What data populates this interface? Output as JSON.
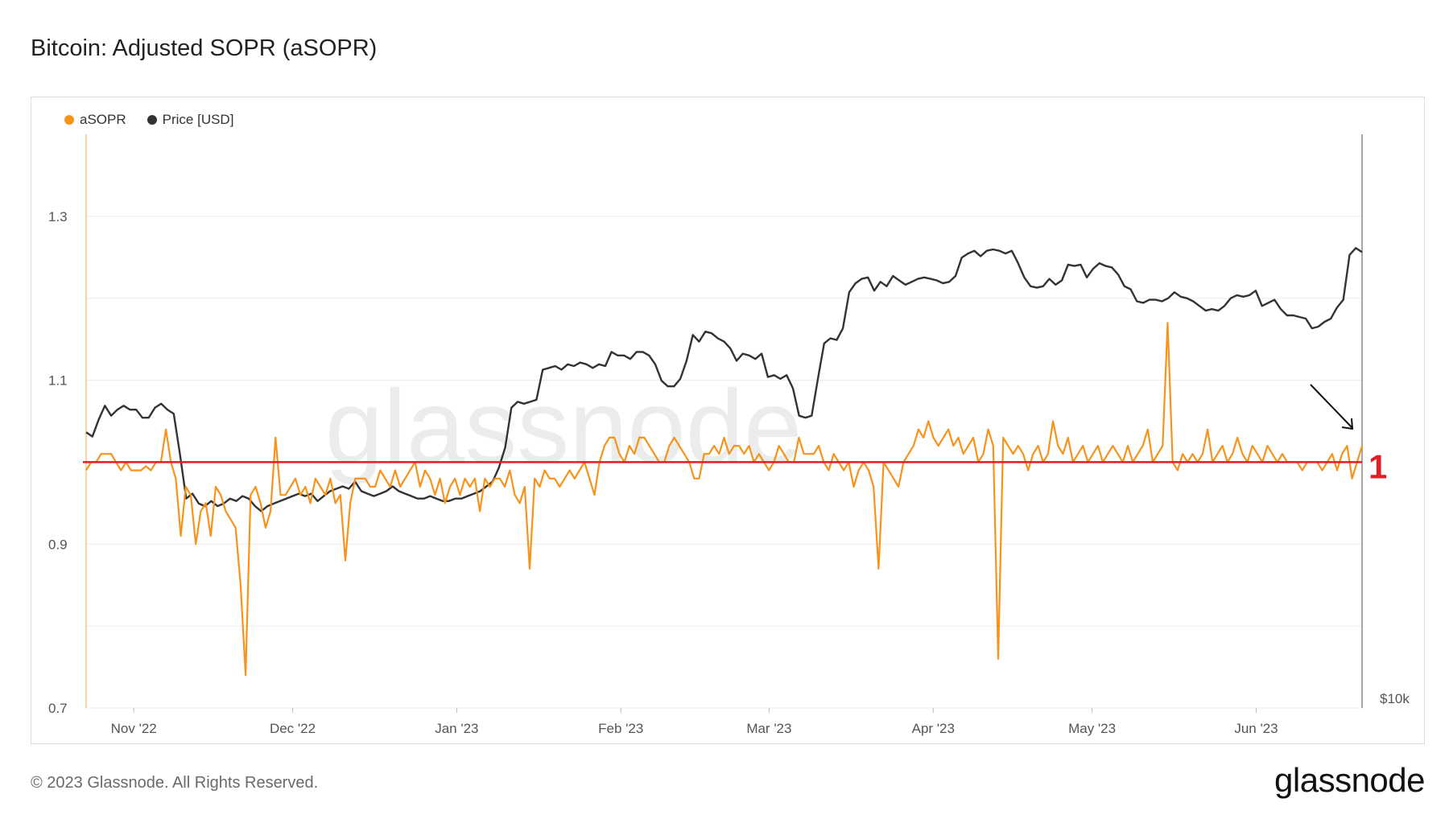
{
  "title": "Bitcoin: Adjusted SOPR (aSOPR)",
  "legend": [
    {
      "name": "aSOPR",
      "color": "#f7931a"
    },
    {
      "name": "Price [USD]",
      "color": "#333333"
    }
  ],
  "watermark": "glassnode",
  "footer": "© 2023 Glassnode. All Rights Reserved.",
  "brand": "glassnode",
  "annotation": {
    "label": "1",
    "color": "#e11d2a",
    "arrow": "down-right"
  },
  "chart_data": {
    "type": "line",
    "title": "Bitcoin: Adjusted SOPR (aSOPR)",
    "x_start": "2022-10-23",
    "x_end": "2023-06-21",
    "x_ticks": [
      "Nov '22",
      "Dec '22",
      "Jan '23",
      "Feb '23",
      "Mar '23",
      "Apr '23",
      "May '23",
      "Jun '23"
    ],
    "y_left": {
      "ticks": [
        "0.7",
        "0.9",
        "1.1",
        "1.3"
      ],
      "range": [
        0.7,
        1.4
      ],
      "grid": true
    },
    "y_right": {
      "ticks": [
        "$10k"
      ],
      "scale": "log"
    },
    "reference_line": {
      "value": 1,
      "label": "1",
      "color": "#e11d2a"
    },
    "series": [
      {
        "name": "aSOPR",
        "color": "#f7931a",
        "axis": "left",
        "values": [
          0.99,
          1.0,
          1.0,
          1.01,
          1.01,
          1.01,
          1.0,
          0.99,
          1.0,
          0.99,
          0.99,
          0.99,
          0.995,
          0.99,
          1.0,
          1.0,
          1.04,
          1.0,
          0.98,
          0.91,
          0.97,
          0.96,
          0.9,
          0.94,
          0.95,
          0.91,
          0.97,
          0.96,
          0.94,
          0.93,
          0.92,
          0.85,
          0.74,
          0.96,
          0.97,
          0.95,
          0.92,
          0.94,
          1.03,
          0.96,
          0.96,
          0.97,
          0.98,
          0.96,
          0.97,
          0.95,
          0.98,
          0.97,
          0.96,
          0.98,
          0.95,
          0.96,
          0.88,
          0.95,
          0.98,
          0.98,
          0.98,
          0.97,
          0.97,
          0.99,
          0.98,
          0.97,
          0.99,
          0.97,
          0.98,
          0.99,
          1.0,
          0.97,
          0.99,
          0.98,
          0.96,
          0.98,
          0.95,
          0.97,
          0.98,
          0.96,
          0.98,
          0.97,
          0.98,
          0.94,
          0.98,
          0.97,
          0.98,
          0.98,
          0.97,
          0.99,
          0.96,
          0.95,
          0.97,
          0.87,
          0.98,
          0.97,
          0.99,
          0.98,
          0.98,
          0.97,
          0.98,
          0.99,
          0.98,
          0.99,
          1.0,
          0.98,
          0.96,
          1.0,
          1.02,
          1.03,
          1.03,
          1.01,
          1.0,
          1.02,
          1.01,
          1.03,
          1.03,
          1.02,
          1.01,
          1.0,
          1.0,
          1.02,
          1.03,
          1.02,
          1.01,
          1.0,
          0.98,
          0.98,
          1.01,
          1.01,
          1.02,
          1.01,
          1.03,
          1.01,
          1.02,
          1.02,
          1.01,
          1.02,
          1.0,
          1.01,
          1.0,
          0.99,
          1.0,
          1.02,
          1.01,
          1.0,
          1.0,
          1.03,
          1.01,
          1.01,
          1.01,
          1.02,
          1.0,
          0.99,
          1.01,
          1.0,
          0.99,
          1.0,
          0.97,
          0.99,
          1.0,
          0.99,
          0.97,
          0.87,
          1.0,
          0.99,
          0.98,
          0.97,
          1.0,
          1.01,
          1.02,
          1.04,
          1.03,
          1.05,
          1.03,
          1.02,
          1.03,
          1.04,
          1.02,
          1.03,
          1.01,
          1.02,
          1.03,
          1.0,
          1.01,
          1.04,
          1.02,
          0.76,
          1.03,
          1.02,
          1.01,
          1.02,
          1.01,
          0.99,
          1.01,
          1.02,
          1.0,
          1.01,
          1.05,
          1.02,
          1.01,
          1.03,
          1.0,
          1.01,
          1.02,
          1.0,
          1.01,
          1.02,
          1.0,
          1.01,
          1.02,
          1.01,
          1.0,
          1.02,
          1.0,
          1.01,
          1.02,
          1.04,
          1.0,
          1.01,
          1.02,
          1.17,
          1.0,
          0.99,
          1.01,
          1.0,
          1.01,
          1.0,
          1.01,
          1.04,
          1.0,
          1.01,
          1.02,
          1.0,
          1.01,
          1.03,
          1.01,
          1.0,
          1.02,
          1.01,
          1.0,
          1.02,
          1.01,
          1.0,
          1.01,
          1.0,
          1.0,
          1.0,
          0.99,
          1.0,
          1.0,
          1.0,
          0.99,
          1.0,
          1.01,
          0.99,
          1.01,
          1.02,
          0.98,
          1.0,
          1.02
        ],
        "values_note_removed": true
      },
      {
        "name": "Price [USD]",
        "color": "#333333",
        "axis": "right",
        "values": [
          19500,
          19300,
          20100,
          20800,
          20300,
          20600,
          20800,
          20600,
          20600,
          20200,
          20200,
          20700,
          20900,
          20600,
          20400,
          18500,
          16600,
          16800,
          16400,
          16300,
          16500,
          16300,
          16400,
          16600,
          16500,
          16700,
          16600,
          16300,
          16100,
          16300,
          16400,
          16500,
          16600,
          16700,
          16800,
          16700,
          16800,
          16500,
          16700,
          16900,
          17000,
          17100,
          17000,
          17300,
          16900,
          16800,
          16700,
          16800,
          16900,
          17100,
          16900,
          16800,
          16700,
          16600,
          16600,
          16700,
          16600,
          16500,
          16500,
          16600,
          16600,
          16700,
          16800,
          16900,
          17100,
          17300,
          17900,
          18800,
          20700,
          21000,
          20900,
          21000,
          21100,
          22700,
          22800,
          22900,
          22700,
          23000,
          22900,
          23100,
          23000,
          22800,
          23000,
          22900,
          23700,
          23500,
          23500,
          23300,
          23700,
          23700,
          23500,
          23000,
          22100,
          21800,
          21800,
          22200,
          23200,
          24700,
          24300,
          24900,
          24800,
          24500,
          24300,
          23900,
          23200,
          23600,
          23500,
          23300,
          23600,
          22300,
          22400,
          22200,
          22400,
          21700,
          20300,
          20200,
          20300,
          22200,
          24200,
          24500,
          24400,
          25100,
          27400,
          28000,
          28300,
          28400,
          27500,
          28100,
          27800,
          28500,
          28200,
          27900,
          28100,
          28300,
          28400,
          28300,
          28200,
          28000,
          28100,
          28500,
          29800,
          30100,
          30300,
          29900,
          30300,
          30400,
          30300,
          30100,
          30300,
          29400,
          28400,
          27800,
          27700,
          27800,
          28300,
          27900,
          28200,
          29300,
          29200,
          29300,
          28400,
          29000,
          29400,
          29200,
          29100,
          28600,
          27800,
          27600,
          26800,
          26700,
          26900,
          26900,
          26800,
          27000,
          27400,
          27100,
          27000,
          26800,
          26500,
          26200,
          26300,
          26200,
          26500,
          27000,
          27200,
          27100,
          27200,
          27500,
          26500,
          26700,
          26900,
          26300,
          25900,
          25900,
          25800,
          25700,
          25100,
          25200,
          25500,
          25700,
          26400,
          26900,
          30000,
          30500,
          30200
        ],
        "note": ""
      }
    ]
  }
}
